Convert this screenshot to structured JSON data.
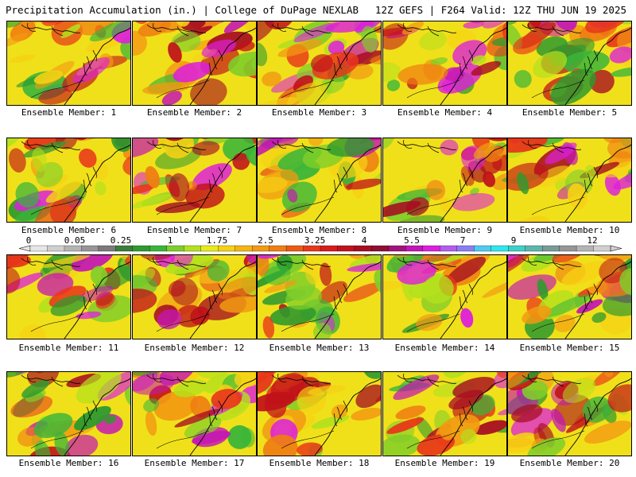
{
  "header": {
    "title": "Precipitation Accumulation (in.) | College of DuPage NEXLAB",
    "valid": "12Z GEFS | F264 Valid: 12Z THU JUN 19 2025"
  },
  "members": [
    {
      "caption": "Ensemble Member: 1"
    },
    {
      "caption": "Ensemble Member: 2"
    },
    {
      "caption": "Ensemble Member: 3"
    },
    {
      "caption": "Ensemble Member: 4"
    },
    {
      "caption": "Ensemble Member: 5"
    },
    {
      "caption": "Ensemble Member: 6"
    },
    {
      "caption": "Ensemble Member: 7"
    },
    {
      "caption": "Ensemble Member: 8"
    },
    {
      "caption": "Ensemble Member: 9"
    },
    {
      "caption": "Ensemble Member: 10"
    },
    {
      "caption": "Ensemble Member: 11"
    },
    {
      "caption": "Ensemble Member: 12"
    },
    {
      "caption": "Ensemble Member: 13"
    },
    {
      "caption": "Ensemble Member: 14"
    },
    {
      "caption": "Ensemble Member: 15"
    },
    {
      "caption": "Ensemble Member: 16"
    },
    {
      "caption": "Ensemble Member: 17"
    },
    {
      "caption": "Ensemble Member: 18"
    },
    {
      "caption": "Ensemble Member: 19"
    },
    {
      "caption": "Ensemble Member: 20"
    }
  ],
  "colorbar": {
    "labels": [
      "0",
      "0.05",
      "0.25",
      "1",
      "1.75",
      "2.5",
      "3.25",
      "4",
      "5.5",
      "7",
      "9",
      "12"
    ],
    "colors": [
      "#e6e6e6",
      "#cfcfcf",
      "#b4b4b4",
      "#969696",
      "#7a7a7a",
      "#3a7d3a",
      "#2e9a2e",
      "#39b539",
      "#7fce2a",
      "#b3e11d",
      "#e8ec16",
      "#f6d114",
      "#f4b412",
      "#f29a12",
      "#ef7e12",
      "#ec5a12",
      "#e8371a",
      "#d91a1a",
      "#c0121a",
      "#a60e22",
      "#8f0e34",
      "#a3127a",
      "#c416b4",
      "#dd1fdd",
      "#b45cf0",
      "#8c7cf4",
      "#4ecaf3",
      "#2ee6ee",
      "#3cd0c8",
      "#5fb4ae",
      "#7a9a98",
      "#969696",
      "#b4b4b4",
      "#cfcfcf"
    ]
  }
}
